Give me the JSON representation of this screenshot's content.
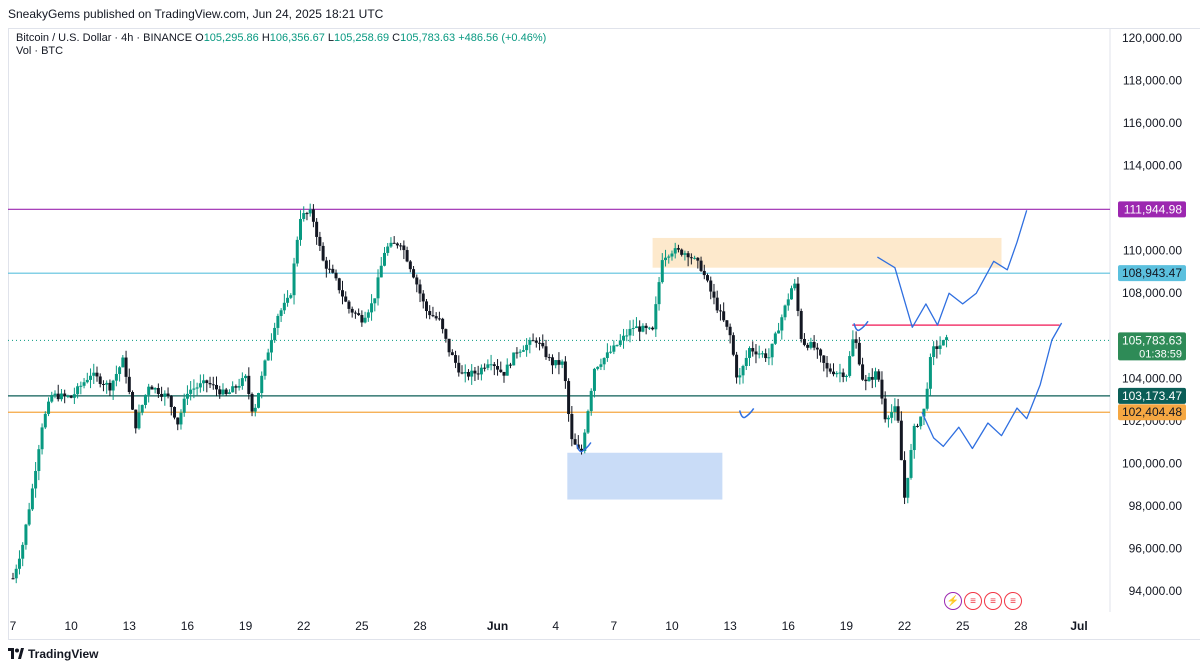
{
  "header": {
    "published_text": "SneakyGems published on TradingView.com, Jun 24, 2025 18:21 UTC"
  },
  "legend": {
    "symbol": "Bitcoin / U.S. Dollar · 4h · BINANCE",
    "open_label": "O",
    "open": "105,295.86",
    "high_label": "H",
    "high": "106,356.67",
    "low_label": "L",
    "low": "105,258.69",
    "close_label": "C",
    "close": "105,783.63",
    "change": "+486.56 (+0.46%)",
    "volume": "Vol · BTC"
  },
  "footer": {
    "brand": "TradingView"
  },
  "colors": {
    "up": "#089981",
    "down": "#131722",
    "purple_line": "#9c27b0",
    "cyan_line": "#5bc0de",
    "teal_line": "#0b5e57",
    "orange_line": "#f5a742",
    "blue_zone": "#c9dcf7",
    "orange_zone": "#fde9cc",
    "pink_line": "#f23b6f",
    "projection": "#2f6fe0"
  },
  "chart_data": {
    "type": "candlestick",
    "yaxis": {
      "ylim": [
        93000,
        121000
      ],
      "ticks": [
        "120,000.00",
        "118,000.00",
        "116,000.00",
        "114,000.00",
        "110,000.00",
        "108,000.00",
        "104,000.00",
        "102,000.00",
        "100,000.00",
        "98,000.00",
        "96,000.00",
        "94,000.00"
      ],
      "tick_values": [
        120000,
        118000,
        116000,
        114000,
        110000,
        108000,
        104000,
        102000,
        100000,
        98000,
        96000,
        94000
      ]
    },
    "xaxis": {
      "labels": [
        "7",
        "10",
        "13",
        "16",
        "19",
        "22",
        "25",
        "28",
        "Jun",
        "4",
        "7",
        "10",
        "13",
        "16",
        "19",
        "22",
        "25",
        "28",
        "Jul"
      ],
      "label_days": [
        0,
        3,
        6,
        9,
        12,
        15,
        18,
        21,
        25,
        28,
        31,
        34,
        37,
        40,
        43,
        46,
        49,
        52,
        55
      ],
      "bold": [
        "Jun",
        "Jul"
      ]
    },
    "horizontal_levels": [
      {
        "label": "111,944.98",
        "value": 111944.98,
        "color": "#9c27b0",
        "style": "solid"
      },
      {
        "label": "108,943.47",
        "value": 108943.47,
        "color": "#5bc0de",
        "style": "solid"
      },
      {
        "label": "103,173.47",
        "value": 103173.47,
        "color": "#0b5e57",
        "style": "solid"
      },
      {
        "label": "102,404.48",
        "value": 102404.48,
        "color": "#f5a742",
        "style": "solid"
      }
    ],
    "price_label": {
      "value": "105,783.63",
      "countdown": "01:38:59",
      "price": 105783.63
    },
    "zones": [
      {
        "name": "support-zone",
        "from_day": 28.6,
        "to_day": 36.6,
        "low": 98300,
        "high": 100500,
        "color": "#c9dcf7"
      },
      {
        "name": "resistance-zone",
        "from_day": 33.0,
        "to_day": 51.0,
        "low": 109200,
        "high": 110600,
        "color": "#fde9cc"
      }
    ],
    "pink_level": {
      "from_day": 43.3,
      "to_day": 54.0,
      "value": 106500
    },
    "path": [
      [
        0,
        94600
      ],
      [
        0.5,
        96200
      ],
      [
        1,
        98800
      ],
      [
        1.5,
        101800
      ],
      [
        2,
        103200
      ],
      [
        3,
        103100
      ],
      [
        4,
        104200
      ],
      [
        5,
        103600
      ],
      [
        5.7,
        104900
      ],
      [
        6.3,
        101700
      ],
      [
        7,
        103700
      ],
      [
        8,
        103100
      ],
      [
        8.5,
        101900
      ],
      [
        9,
        103400
      ],
      [
        10,
        103800
      ],
      [
        11,
        103200
      ],
      [
        12,
        104000
      ],
      [
        12.4,
        102300
      ],
      [
        13,
        104700
      ],
      [
        13.6,
        106900
      ],
      [
        14.3,
        107800
      ],
      [
        14.8,
        111600
      ],
      [
        15.4,
        111800
      ],
      [
        16,
        109500
      ],
      [
        16.6,
        108700
      ],
      [
        17.3,
        107300
      ],
      [
        18,
        106800
      ],
      [
        18.6,
        107600
      ],
      [
        19.2,
        110100
      ],
      [
        20,
        110400
      ],
      [
        20.7,
        108800
      ],
      [
        21.3,
        107200
      ],
      [
        22,
        106700
      ],
      [
        22.5,
        105300
      ],
      [
        23.2,
        104100
      ],
      [
        24,
        104300
      ],
      [
        24.6,
        104900
      ],
      [
        25.3,
        104200
      ],
      [
        26,
        105300
      ],
      [
        27,
        105800
      ],
      [
        27.8,
        104700
      ],
      [
        28.4,
        104700
      ],
      [
        28.8,
        101100
      ],
      [
        29.3,
        100400
      ],
      [
        30,
        104500
      ],
      [
        31,
        105400
      ],
      [
        32,
        106400
      ],
      [
        33,
        106200
      ],
      [
        33.5,
        109700
      ],
      [
        34,
        110000
      ],
      [
        34.8,
        109900
      ],
      [
        35.5,
        109200
      ],
      [
        36.3,
        107400
      ],
      [
        37,
        106000
      ],
      [
        37.4,
        103800
      ],
      [
        38,
        105400
      ],
      [
        39,
        105000
      ],
      [
        39.6,
        106700
      ],
      [
        40.3,
        108600
      ],
      [
        40.7,
        105700
      ],
      [
        41.3,
        105500
      ],
      [
        42,
        104400
      ],
      [
        43,
        104200
      ],
      [
        43.4,
        106100
      ],
      [
        43.9,
        103700
      ],
      [
        44.6,
        104300
      ],
      [
        45,
        102200
      ],
      [
        45.6,
        102600
      ],
      [
        46,
        98400
      ],
      [
        46.5,
        101600
      ],
      [
        47,
        102500
      ],
      [
        47.4,
        105300
      ],
      [
        48.2,
        105800
      ]
    ],
    "projection_paths": [
      {
        "name": "bull-path",
        "points": [
          [
            44.6,
            109700
          ],
          [
            45.5,
            109200
          ],
          [
            46.4,
            106400
          ],
          [
            47.1,
            107500
          ],
          [
            47.7,
            106500
          ],
          [
            48.3,
            108000
          ],
          [
            49,
            107500
          ],
          [
            49.7,
            108000
          ],
          [
            50.6,
            109500
          ],
          [
            51.3,
            109100
          ],
          [
            51.8,
            110400
          ],
          [
            52.3,
            111900
          ]
        ]
      },
      {
        "name": "bear-path",
        "points": [
          [
            46.9,
            102400
          ],
          [
            47.5,
            101200
          ],
          [
            48,
            100800
          ],
          [
            48.8,
            101700
          ],
          [
            49.5,
            100700
          ],
          [
            50.3,
            101900
          ],
          [
            51,
            101300
          ],
          [
            51.8,
            102600
          ],
          [
            52.3,
            102100
          ],
          [
            53,
            103700
          ],
          [
            53.6,
            105800
          ],
          [
            54.1,
            106600
          ]
        ]
      }
    ]
  }
}
